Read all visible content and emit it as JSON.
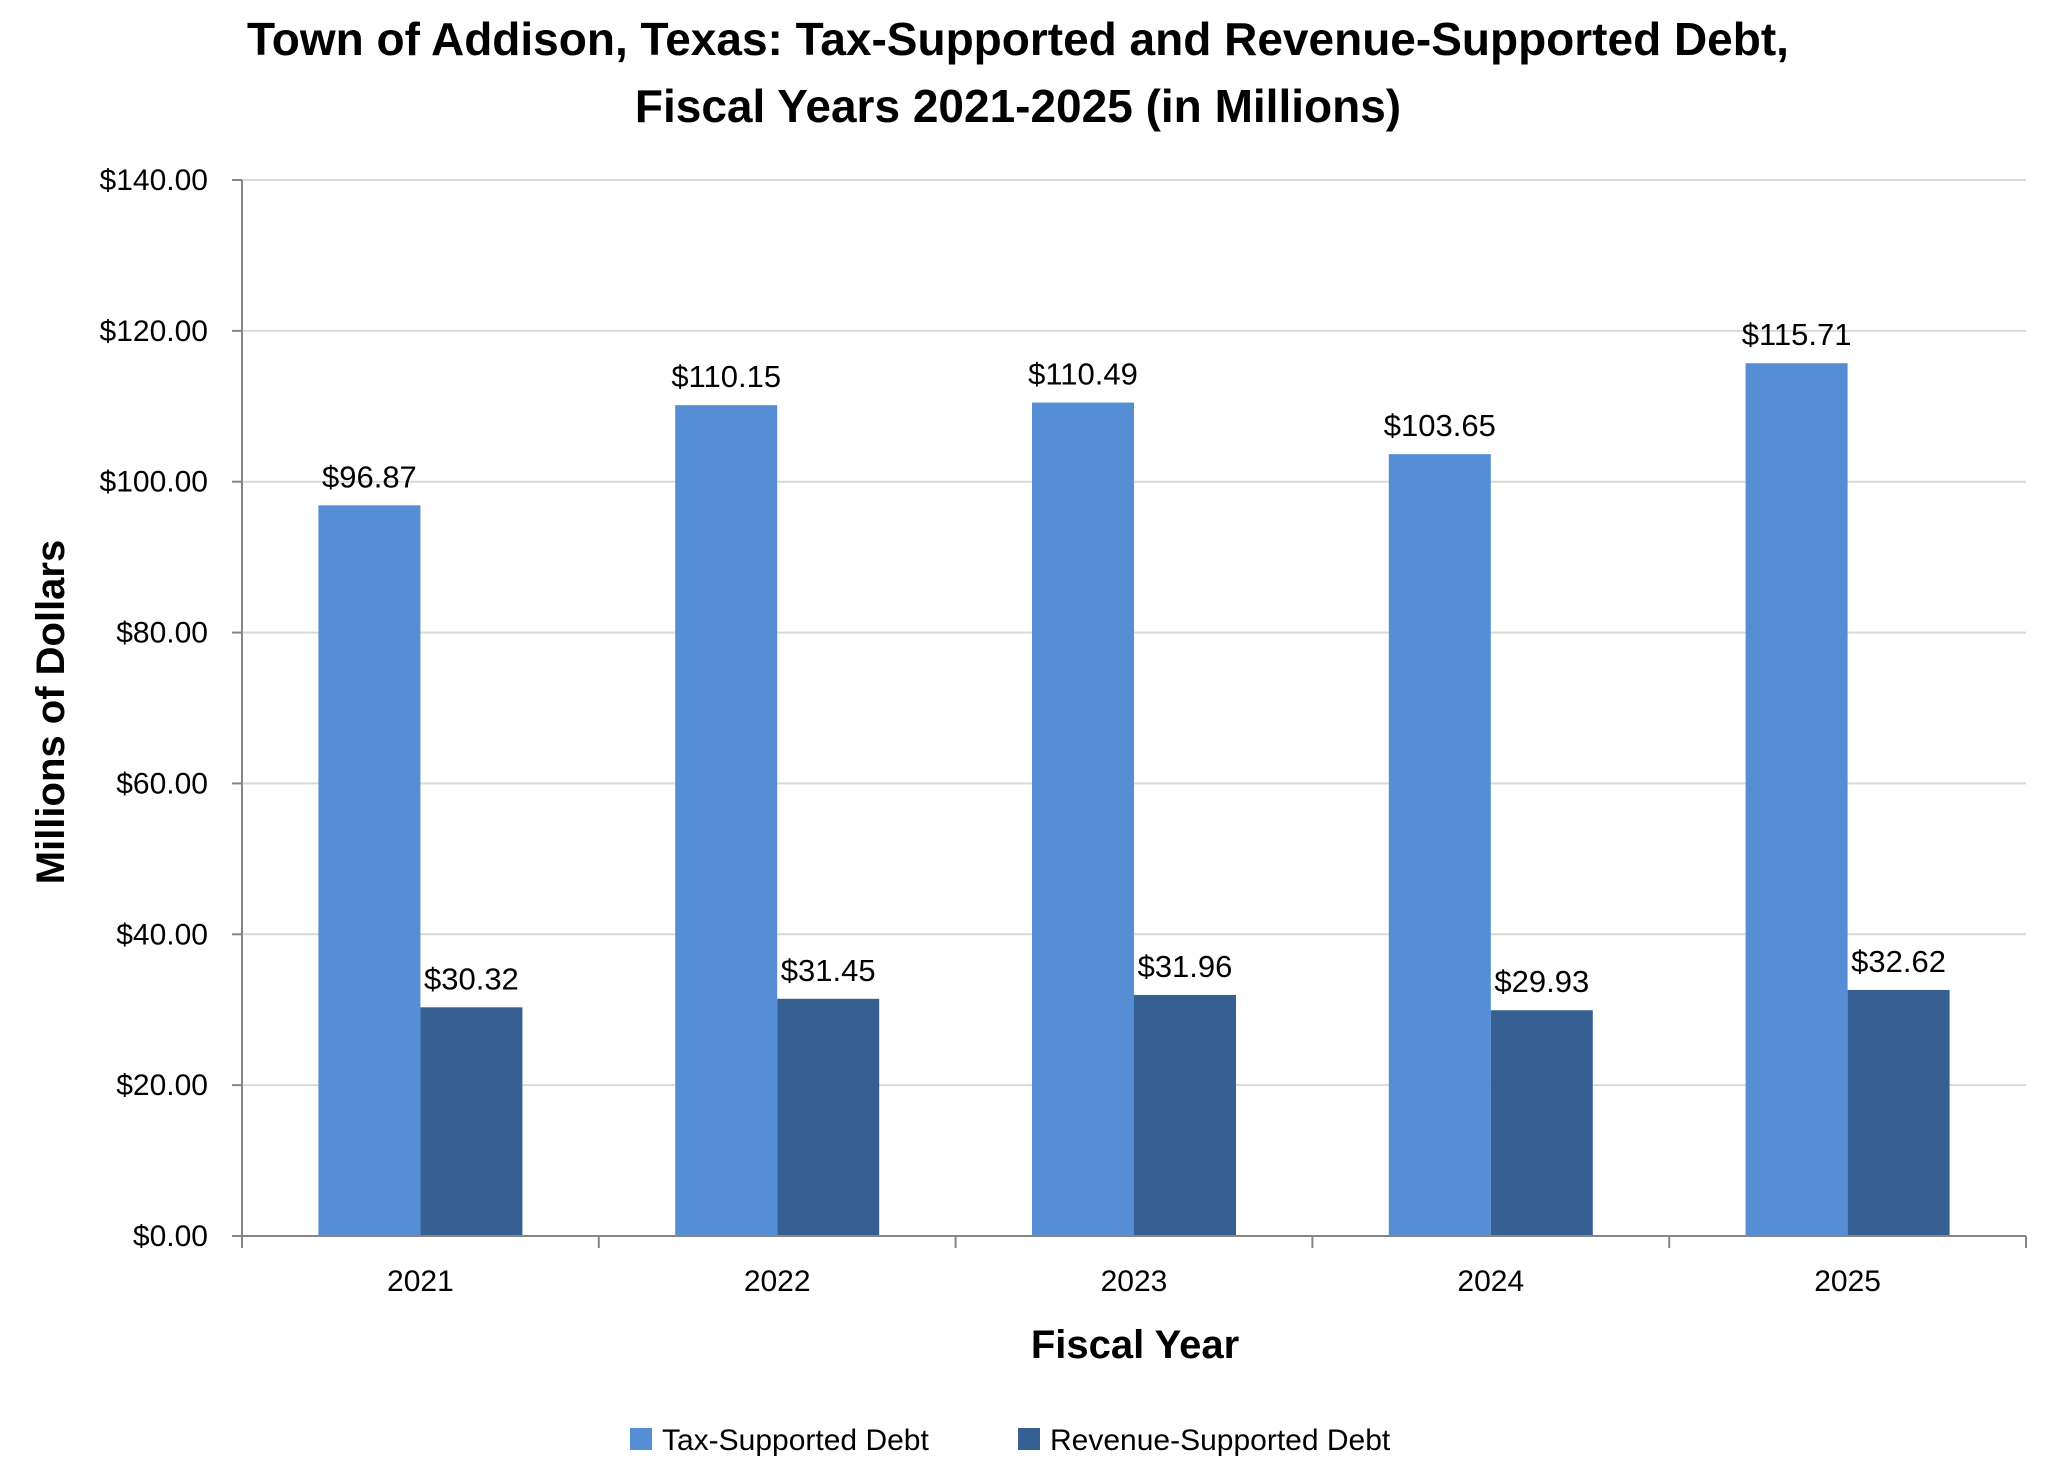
{
  "chart_data": {
    "type": "bar",
    "title": [
      "Town of Addison, Texas: Tax-Supported and Revenue-Supported Debt,",
      "Fiscal Years 2021-2025 (in Millions)"
    ],
    "xlabel": "Fiscal Year",
    "ylabel": "Millions of Dollars",
    "categories": [
      "2021",
      "2022",
      "2023",
      "2024",
      "2025"
    ],
    "series": [
      {
        "name": "Tax-Supported Debt",
        "color": "#558ed5",
        "values": [
          96.87,
          110.15,
          110.49,
          103.65,
          115.71
        ],
        "labels": [
          "$96.87",
          "$110.15",
          "$110.49",
          "$103.65",
          "$115.71"
        ]
      },
      {
        "name": "Revenue-Supported Debt",
        "color": "#376092",
        "values": [
          30.32,
          31.45,
          31.96,
          29.93,
          32.62
        ],
        "labels": [
          "$30.32",
          "$31.45",
          "$31.96",
          "$29.93",
          "$32.62"
        ]
      }
    ],
    "ylim": [
      0,
      140
    ],
    "yticks": [
      0,
      20,
      40,
      60,
      80,
      100,
      120,
      140
    ],
    "ytick_labels": [
      "$0.00",
      "$20.00",
      "$40.00",
      "$60.00",
      "$80.00",
      "$100.00",
      "$120.00",
      "$140.00"
    ],
    "grid": true,
    "legend_position": "bottom"
  }
}
